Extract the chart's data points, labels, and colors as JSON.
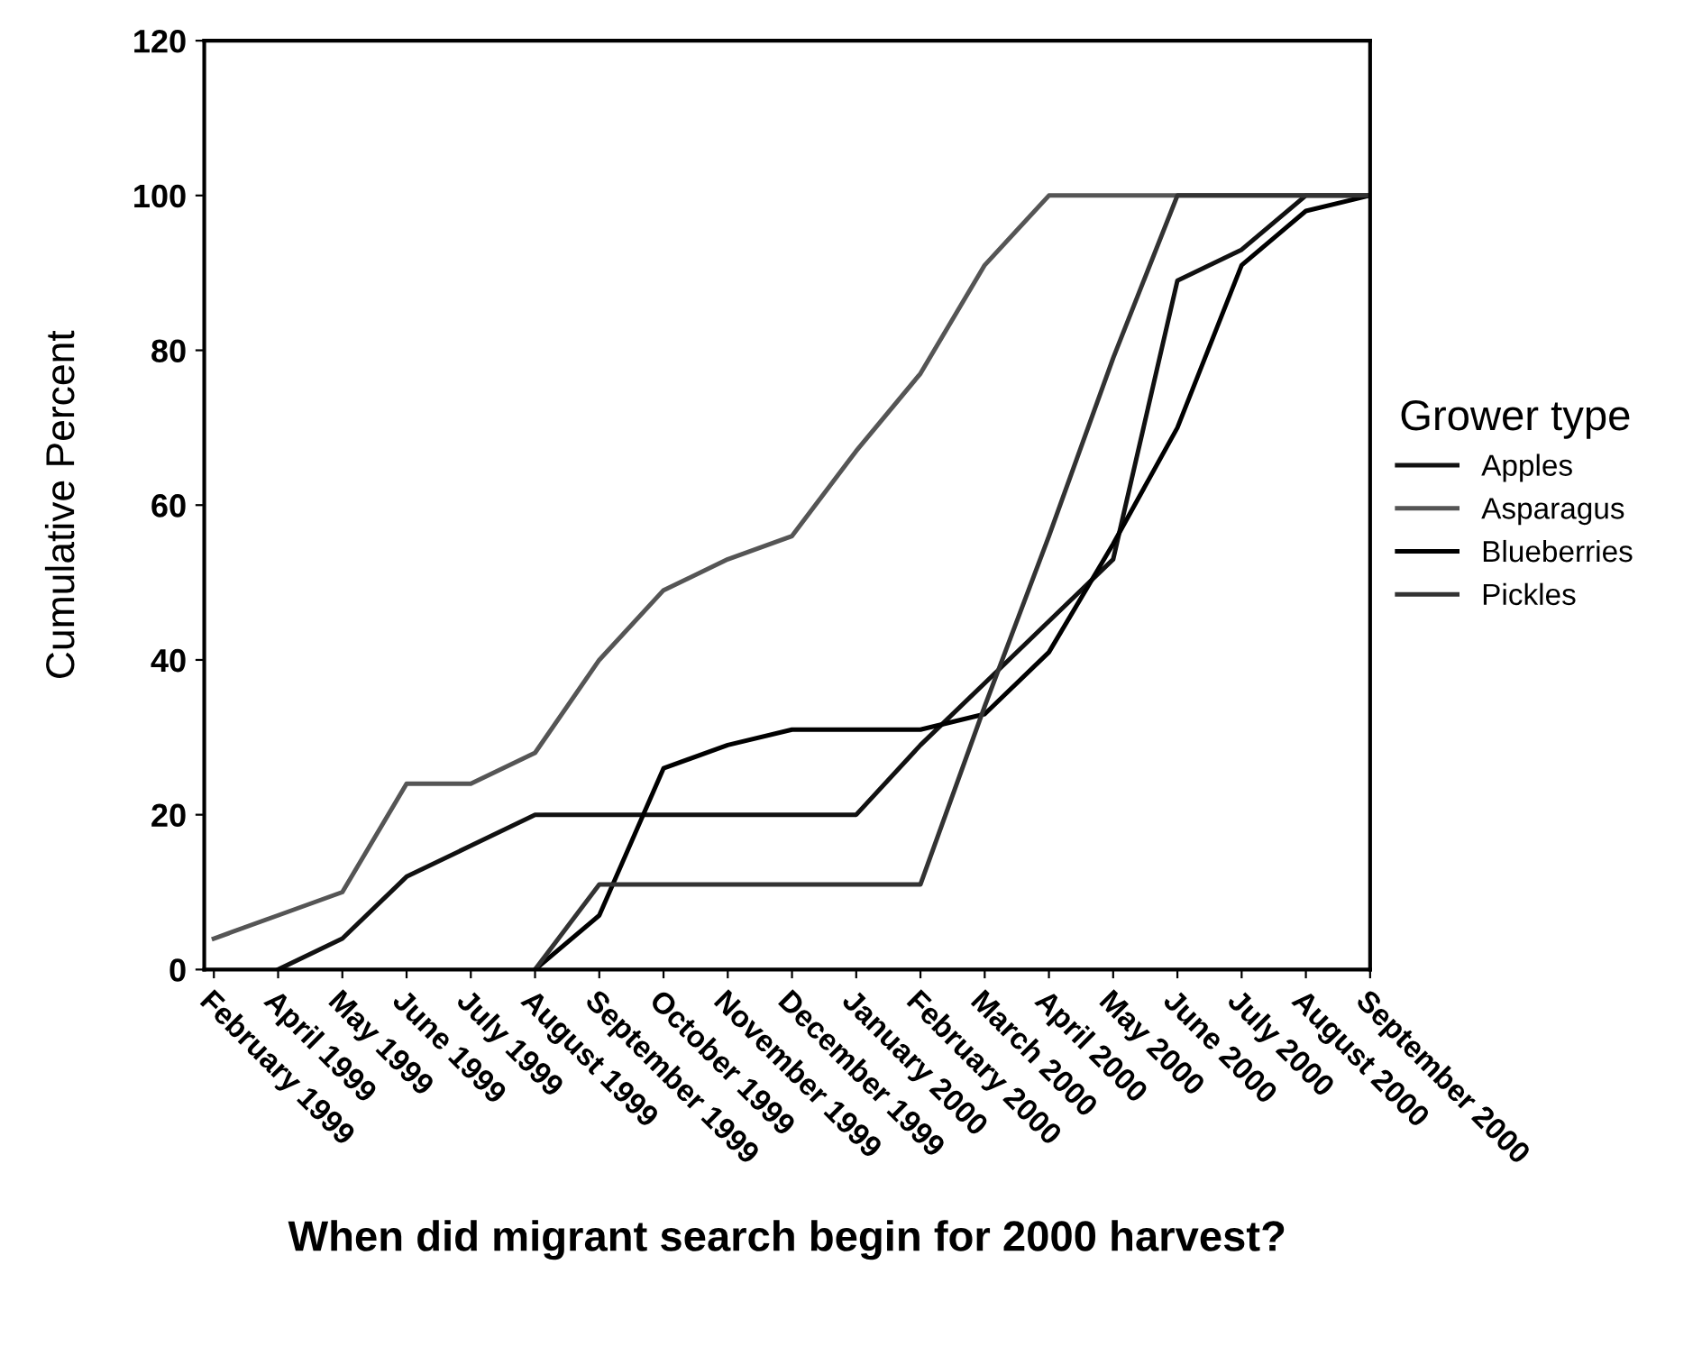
{
  "chart_data": {
    "type": "line",
    "xlabel": "When did migrant search begin for 2000 harvest?",
    "ylabel": "Cumulative Percent",
    "legend_title": "Grower type",
    "categories": [
      "February 1999",
      "April 1999",
      "May 1999",
      "June 1999",
      "July 1999",
      "August 1999",
      "September 1999",
      "October 1999",
      "November 1999",
      "December 1999",
      "January 2000",
      "February 2000",
      "March 2000",
      "April 2000",
      "May 2000",
      "June 2000",
      "July 2000",
      "August 2000",
      "September 2000"
    ],
    "series": [
      {
        "name": "Apples",
        "color": "#111111",
        "values": [
          null,
          0,
          4,
          12,
          16,
          20,
          20,
          20,
          20,
          20,
          20,
          29,
          37,
          45,
          53,
          89,
          93,
          100,
          100
        ]
      },
      {
        "name": "Asparagus",
        "color": "#555555",
        "values": [
          4,
          7,
          10,
          24,
          24,
          28,
          40,
          49,
          53,
          56,
          67,
          77,
          91,
          100,
          100,
          100,
          100,
          100,
          100
        ]
      },
      {
        "name": "Blueberries",
        "color": "#000000",
        "values": [
          null,
          null,
          null,
          null,
          null,
          0,
          7,
          26,
          29,
          31,
          31,
          31,
          33,
          41,
          55,
          70,
          91,
          98,
          100
        ]
      },
      {
        "name": "Pickles",
        "color": "#333333",
        "values": [
          null,
          null,
          null,
          null,
          null,
          0,
          11,
          11,
          11,
          11,
          11,
          11,
          34,
          56,
          79,
          100,
          100,
          100,
          100
        ]
      }
    ],
    "ylim": [
      0,
      120
    ],
    "yticks": [
      0,
      20,
      40,
      60,
      80,
      100,
      120
    ],
    "grid": false,
    "legend": "right",
    "marker": "none",
    "line_style": "solid"
  }
}
